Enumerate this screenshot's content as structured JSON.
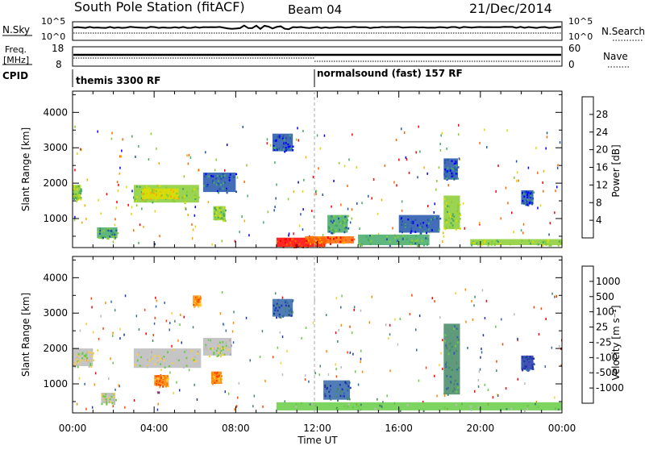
{
  "header": {
    "station": "South Pole Station (fitACF)",
    "beam": "Beam 04",
    "date": "21/Dec/2014"
  },
  "noise_panel": {
    "left_label": "N.Sky",
    "left_ticks": [
      "10^5",
      "10^0"
    ],
    "right_label": "N.Search",
    "right_ticks": [
      "10^5",
      "10^0"
    ]
  },
  "freq_panel": {
    "left_label_line1": "Freq.",
    "left_label_line2": "[MHz]",
    "left_ticks": [
      "18",
      "8"
    ],
    "right_label": "Nave",
    "right_ticks": [
      "60",
      "0"
    ]
  },
  "cpid_panel": {
    "label": "CPID",
    "modes": [
      {
        "name": "themis 3300 RF",
        "start_hour": 0
      },
      {
        "name": "normalsound (fast) 157 RF",
        "start_hour": 12
      }
    ]
  },
  "power_panel": {
    "colorbar_label": "Power [dB]",
    "colorbar_ticks": [
      "28",
      "24",
      "20",
      "16",
      "12",
      "8",
      "4"
    ],
    "colors": [
      "#ff0000",
      "#ff6600",
      "#ffaa00",
      "#dddd00",
      "#88cc33",
      "#44aa66",
      "#2255aa",
      "#0000ff"
    ]
  },
  "velocity_panel": {
    "colorbar_label": "Velocity [m s⁻¹]",
    "colorbar_ticks": [
      "1000",
      "500",
      "100",
      "25",
      "-25",
      "-100",
      "-500",
      "-1000"
    ],
    "colors": [
      "#2233aa",
      "#3366aa",
      "#448866",
      "#66cc44",
      "#bbbbbb",
      "#ffcc33",
      "#ff8800",
      "#ff4400",
      "#ff0000"
    ]
  },
  "chart_data": {
    "type": "heatmap",
    "xlabel": "Time UT",
    "ylabel": "Slant Range [km]",
    "x_ticks": [
      "00:00",
      "04:00",
      "08:00",
      "12:00",
      "16:00",
      "20:00",
      "00:00"
    ],
    "y_ticks": [
      1000,
      2000,
      3000,
      4000
    ],
    "xlim_hours": [
      0,
      24
    ],
    "ylim_km": [
      180,
      4600
    ],
    "power_regions": [
      {
        "t0": 0.0,
        "t1": 0.4,
        "r0": 1550,
        "r1": 1950,
        "level": 4
      },
      {
        "t0": 1.2,
        "t1": 2.2,
        "r0": 450,
        "r1": 750,
        "level": 5
      },
      {
        "t0": 3.0,
        "t1": 6.2,
        "r0": 1450,
        "r1": 1950,
        "level": 4
      },
      {
        "t0": 3.4,
        "t1": 5.2,
        "r0": 1550,
        "r1": 1850,
        "level": 3
      },
      {
        "t0": 6.4,
        "t1": 8.0,
        "r0": 1750,
        "r1": 2300,
        "level": 6
      },
      {
        "t0": 6.9,
        "t1": 7.5,
        "r0": 950,
        "r1": 1350,
        "level": 4
      },
      {
        "t0": 10.0,
        "t1": 12.4,
        "r0": 200,
        "r1": 460,
        "level": 0
      },
      {
        "t0": 11.4,
        "t1": 13.8,
        "r0": 300,
        "r1": 500,
        "level": 1
      },
      {
        "t0": 12.5,
        "t1": 13.5,
        "r0": 600,
        "r1": 1100,
        "level": 5
      },
      {
        "t0": 14.0,
        "t1": 17.5,
        "r0": 250,
        "r1": 550,
        "level": 5
      },
      {
        "t0": 16.0,
        "t1": 18.0,
        "r0": 600,
        "r1": 1100,
        "level": 6
      },
      {
        "t0": 18.2,
        "t1": 19.0,
        "r0": 700,
        "r1": 1650,
        "level": 4
      },
      {
        "t0": 18.2,
        "t1": 18.9,
        "r0": 2100,
        "r1": 2700,
        "level": 6
      },
      {
        "t0": 19.5,
        "t1": 24.0,
        "r0": 250,
        "r1": 420,
        "level": 4
      },
      {
        "t0": 22.0,
        "t1": 22.6,
        "r0": 1400,
        "r1": 1800,
        "level": 6
      },
      {
        "t0": 9.8,
        "t1": 10.8,
        "r0": 2900,
        "r1": 3400,
        "level": 6
      }
    ],
    "velocity_regions": [
      {
        "t0": 0.0,
        "t1": 1.0,
        "r0": 1500,
        "r1": 2000,
        "level": 4
      },
      {
        "t0": 1.4,
        "t1": 2.1,
        "r0": 450,
        "r1": 750,
        "level": 4
      },
      {
        "t0": 3.0,
        "t1": 6.3,
        "r0": 1450,
        "r1": 2000,
        "level": 4
      },
      {
        "t0": 6.4,
        "t1": 7.8,
        "r0": 1800,
        "r1": 2300,
        "level": 4
      },
      {
        "t0": 4.0,
        "t1": 4.7,
        "r0": 950,
        "r1": 1250,
        "level": 6
      },
      {
        "t0": 6.8,
        "t1": 7.3,
        "r0": 1000,
        "r1": 1350,
        "level": 6
      },
      {
        "t0": 5.9,
        "t1": 6.3,
        "r0": 3200,
        "r1": 3500,
        "level": 6
      },
      {
        "t0": 10.0,
        "t1": 24.0,
        "r0": 250,
        "r1": 480,
        "level": 3
      },
      {
        "t0": 12.3,
        "t1": 13.6,
        "r0": 550,
        "r1": 1100,
        "level": 1
      },
      {
        "t0": 18.2,
        "t1": 19.0,
        "r0": 700,
        "r1": 2700,
        "level": 2
      },
      {
        "t0": 22.0,
        "t1": 22.6,
        "r0": 1400,
        "r1": 1800,
        "level": 0
      },
      {
        "t0": 9.8,
        "t1": 10.8,
        "r0": 2900,
        "r1": 3400,
        "level": 1
      }
    ]
  }
}
